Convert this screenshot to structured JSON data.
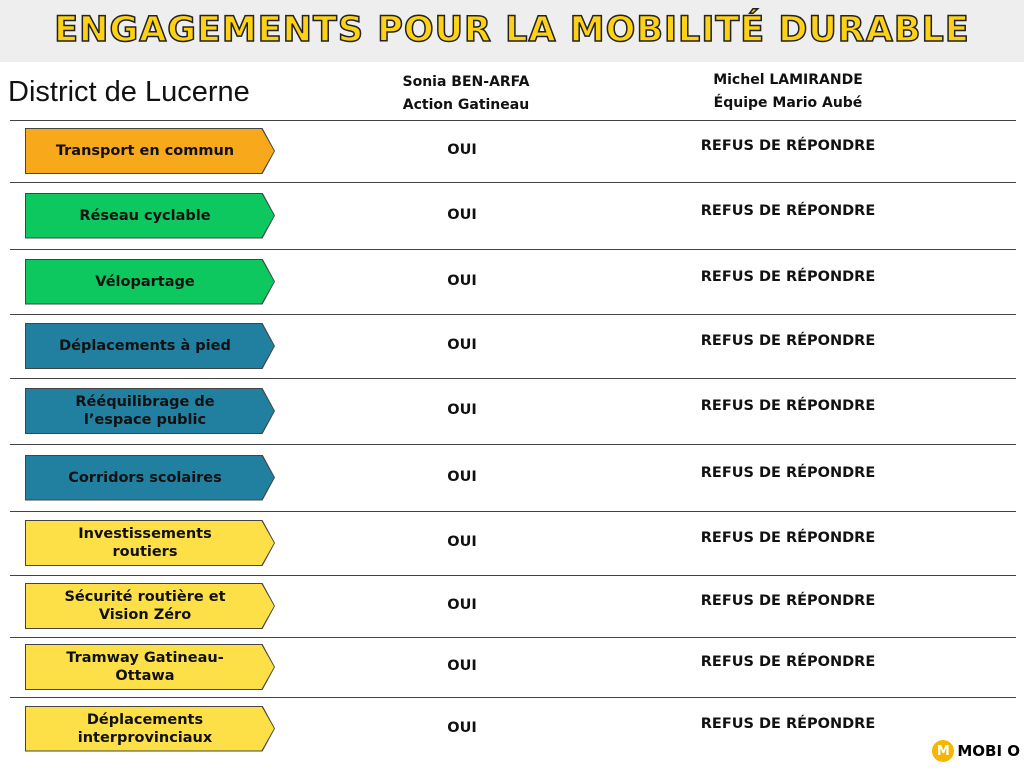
{
  "header": {
    "title": "ENGAGEMENTS POUR LA MOBILITÉ DURABLE",
    "district": "District de Lucerne"
  },
  "candidates": [
    {
      "name": "Sonia BEN-ARFA",
      "party": "Action Gatineau"
    },
    {
      "name": "Michel LAMIRANDE",
      "party": "Équipe Mario Aubé"
    }
  ],
  "table": {
    "rows": [
      [
        "Transport en commun",
        "OUI",
        "REFUS DE RÉPONDRE"
      ],
      [
        "Réseau cyclable",
        "OUI",
        "REFUS DE RÉPONDRE"
      ],
      [
        "Vélopartage",
        "OUI",
        "REFUS DE RÉPONDRE"
      ],
      [
        "Déplacements à pied",
        "OUI",
        "REFUS DE RÉPONDRE"
      ],
      [
        "Rééquilibrage de l’espace public",
        "OUI",
        "REFUS DE RÉPONDRE"
      ],
      [
        "Corridors scolaires",
        "OUI",
        "REFUS DE RÉPONDRE"
      ],
      [
        "Investissements routiers",
        "OUI",
        "REFUS DE RÉPONDRE"
      ],
      [
        "Sécurité routière et Vision Zéro",
        "OUI",
        "REFUS DE RÉPONDRE"
      ],
      [
        "Tramway Gatineau-Ottawa",
        "OUI",
        "REFUS DE RÉPONDRE"
      ],
      [
        "Déplacements interprovinciaux",
        "OUI",
        "REFUS DE RÉPONDRE"
      ]
    ]
  },
  "logo": {
    "mark": "M",
    "text": "MOBI O"
  }
}
